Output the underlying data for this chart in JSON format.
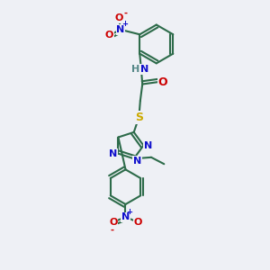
{
  "background_color": "#eef0f5",
  "bond_color": "#2d6b4a",
  "bond_width": 1.5,
  "atom_colors": {
    "N": "#1010cc",
    "O": "#cc0000",
    "S": "#ccaa00",
    "H": "#558888"
  }
}
